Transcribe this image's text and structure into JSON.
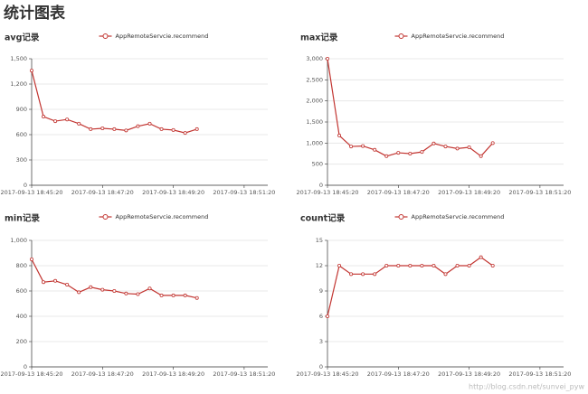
{
  "page_title": "统计图表",
  "watermark": "http://blog.csdn.net/sunvei_pyw",
  "chart_data": [
    {
      "type": "line",
      "title": "avg记录",
      "x": [
        "2017-09-13 18:45:20",
        "2017-09-13 18:45:40",
        "2017-09-13 18:46:00",
        "2017-09-13 18:46:20",
        "2017-09-13 18:46:40",
        "2017-09-13 18:47:00",
        "2017-09-13 18:47:20",
        "2017-09-13 18:47:40",
        "2017-09-13 18:48:00",
        "2017-09-13 18:48:20",
        "2017-09-13 18:48:40",
        "2017-09-13 18:49:00",
        "2017-09-13 18:49:20",
        "2017-09-13 18:49:40",
        "2017-09-13 18:50:00"
      ],
      "series": [
        {
          "name": "AppRemoteServcie.recommend",
          "color": "#c23531",
          "values": [
            1360,
            814,
            760,
            780,
            730,
            665,
            675,
            665,
            650,
            700,
            730,
            665,
            655,
            620,
            665
          ]
        }
      ],
      "xlim": [
        "2017-09-13 18:45:20",
        "2017-09-13 18:52:00"
      ],
      "xticks": [
        "2017-09-13 18:45:20",
        "2017-09-13 18:47:20",
        "2017-09-13 18:49:20",
        "2017-09-13 18:51:20"
      ],
      "ylim": [
        0,
        1500
      ],
      "yticks": [
        0,
        300,
        600,
        900,
        {
          "value": 1200,
          "label": "1,200"
        },
        {
          "value": 1500,
          "label": "1,500"
        }
      ],
      "grid": true
    },
    {
      "type": "line",
      "title": "max记录",
      "x": [
        "2017-09-13 18:45:20",
        "2017-09-13 18:45:40",
        "2017-09-13 18:46:00",
        "2017-09-13 18:46:20",
        "2017-09-13 18:46:40",
        "2017-09-13 18:47:00",
        "2017-09-13 18:47:20",
        "2017-09-13 18:47:40",
        "2017-09-13 18:48:00",
        "2017-09-13 18:48:20",
        "2017-09-13 18:48:40",
        "2017-09-13 18:49:00",
        "2017-09-13 18:49:20",
        "2017-09-13 18:49:40",
        "2017-09-13 18:50:00"
      ],
      "series": [
        {
          "name": "AppRemoteServcie.recommend",
          "color": "#c23531",
          "values": [
            3000,
            1180,
            920,
            930,
            840,
            690,
            770,
            750,
            790,
            990,
            920,
            870,
            900,
            690,
            1000
          ]
        }
      ],
      "xlim": [
        "2017-09-13 18:45:20",
        "2017-09-13 18:52:00"
      ],
      "xticks": [
        "2017-09-13 18:45:20",
        "2017-09-13 18:47:20",
        "2017-09-13 18:49:20",
        "2017-09-13 18:51:20"
      ],
      "ylim": [
        0,
        3000
      ],
      "yticks": [
        0,
        500,
        {
          "value": 1000,
          "label": "1,000"
        },
        {
          "value": 1500,
          "label": "1,500"
        },
        {
          "value": 2000,
          "label": "2,000"
        },
        {
          "value": 2500,
          "label": "2,500"
        },
        {
          "value": 3000,
          "label": "3,000"
        }
      ],
      "grid": true
    },
    {
      "type": "line",
      "title": "min记录",
      "x": [
        "2017-09-13 18:45:20",
        "2017-09-13 18:45:40",
        "2017-09-13 18:46:00",
        "2017-09-13 18:46:20",
        "2017-09-13 18:46:40",
        "2017-09-13 18:47:00",
        "2017-09-13 18:47:20",
        "2017-09-13 18:47:40",
        "2017-09-13 18:48:00",
        "2017-09-13 18:48:20",
        "2017-09-13 18:48:40",
        "2017-09-13 18:49:00",
        "2017-09-13 18:49:20",
        "2017-09-13 18:49:40",
        "2017-09-13 18:50:00"
      ],
      "series": [
        {
          "name": "AppRemoteServcie.recommend",
          "color": "#c23531",
          "values": [
            850,
            670,
            680,
            650,
            590,
            630,
            610,
            600,
            580,
            575,
            620,
            565,
            565,
            565,
            545
          ]
        }
      ],
      "xlim": [
        "2017-09-13 18:45:20",
        "2017-09-13 18:52:00"
      ],
      "xticks": [
        "2017-09-13 18:45:20",
        "2017-09-13 18:47:20",
        "2017-09-13 18:49:20",
        "2017-09-13 18:51:20"
      ],
      "ylim": [
        0,
        1000
      ],
      "yticks": [
        0,
        200,
        400,
        600,
        800,
        {
          "value": 1000,
          "label": "1,000"
        }
      ],
      "grid": true
    },
    {
      "type": "line",
      "title": "count记录",
      "x": [
        "2017-09-13 18:45:20",
        "2017-09-13 18:45:40",
        "2017-09-13 18:46:00",
        "2017-09-13 18:46:20",
        "2017-09-13 18:46:40",
        "2017-09-13 18:47:00",
        "2017-09-13 18:47:20",
        "2017-09-13 18:47:40",
        "2017-09-13 18:48:00",
        "2017-09-13 18:48:20",
        "2017-09-13 18:48:40",
        "2017-09-13 18:49:00",
        "2017-09-13 18:49:20",
        "2017-09-13 18:49:40",
        "2017-09-13 18:50:00"
      ],
      "series": [
        {
          "name": "AppRemoteServcie.recommend",
          "color": "#c23531",
          "values": [
            6,
            12,
            11,
            11,
            11,
            12,
            12,
            12,
            12,
            12,
            11,
            12,
            12,
            13,
            12
          ]
        }
      ],
      "xlim": [
        "2017-09-13 18:45:20",
        "2017-09-13 18:52:00"
      ],
      "xticks": [
        "2017-09-13 18:45:20",
        "2017-09-13 18:47:20",
        "2017-09-13 18:49:20",
        "2017-09-13 18:51:20"
      ],
      "ylim": [
        0,
        15
      ],
      "yticks": [
        0,
        3,
        6,
        9,
        12,
        15
      ],
      "grid": true
    }
  ]
}
